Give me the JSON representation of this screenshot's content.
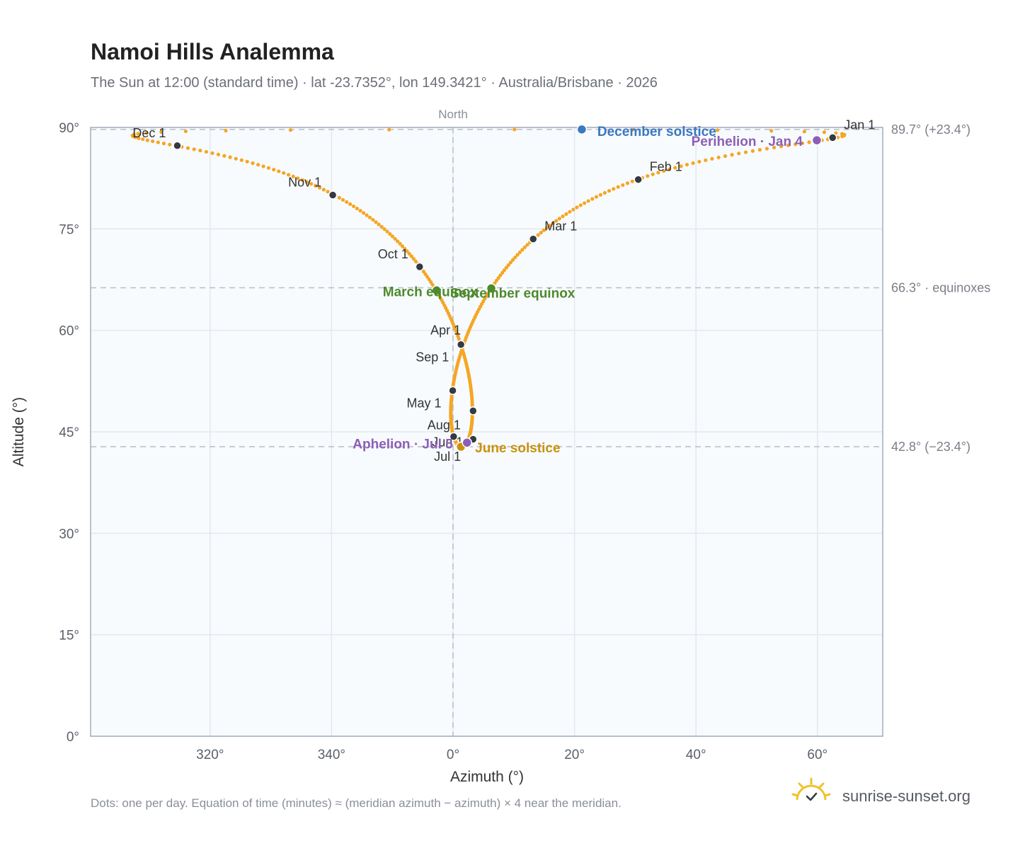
{
  "title": "Namoi Hills Analemma",
  "subtitle": "The Sun at 12:00 (standard time) · lat -23.7352°, lon 149.3421° · Australia/Brisbane · 2026",
  "footnote": "Dots: one per day. Equation of time (minutes) ≈ (meridian azimuth − azimuth) × 4 near the meridian.",
  "brand": {
    "name": "sunrise-sunset.org",
    "logo_icon": "sun-logo-icon"
  },
  "colors": {
    "curve": "#f5a623",
    "month_marker": "#333a44",
    "equinox": "#4e8a2c",
    "december_solstice": "#3a78bf",
    "june_solstice": "#c9920c",
    "apsis": "#8c5fb5",
    "grid": "#e4e7ec",
    "plot_bg": "#f8fbfe",
    "frame": "#a3aebb",
    "reference_line": "#b7bec7"
  },
  "chart_data": {
    "type": "scatter",
    "title": "Namoi Hills Analemma",
    "xlabel": "Azimuth (°)",
    "ylabel": "Altitude (°)",
    "x_unit": "azimuth degrees, plotted continuously across North (300° … 360°=0° … 70°)",
    "xlim": [
      300,
      430
    ],
    "ylim": [
      0,
      90
    ],
    "x_ticks": [
      {
        "value": 320,
        "label": "320°"
      },
      {
        "value": 340,
        "label": "340°"
      },
      {
        "value": 360,
        "label": "0°"
      },
      {
        "value": 380,
        "label": "20°"
      },
      {
        "value": 400,
        "label": "40°"
      },
      {
        "value": 420,
        "label": "60°"
      }
    ],
    "y_ticks": [
      {
        "value": 0,
        "label": "0°"
      },
      {
        "value": 15,
        "label": "15°"
      },
      {
        "value": 30,
        "label": "30°"
      },
      {
        "value": 45,
        "label": "45°"
      },
      {
        "value": 60,
        "label": "60°"
      },
      {
        "value": 75,
        "label": "75°"
      },
      {
        "value": 90,
        "label": "90°"
      }
    ],
    "grid": true,
    "north_marker": {
      "azimuth": 360,
      "label": "North"
    },
    "reference_lines": [
      {
        "altitude": 89.7,
        "label": "89.7° (+23.4°)"
      },
      {
        "altitude": 66.3,
        "label": "66.3° · equinoxes"
      },
      {
        "altitude": 42.8,
        "label": "42.8° (−23.4°)"
      }
    ],
    "month_markers": [
      {
        "label": "Jan 1",
        "azimuth": 422.5,
        "altitude": 88.5
      },
      {
        "label": "Feb 1",
        "azimuth": 390.5,
        "altitude": 82.3
      },
      {
        "label": "Mar 1",
        "azimuth": 373.2,
        "altitude": 73.5
      },
      {
        "label": "Apr 1",
        "azimuth": 361.3,
        "altitude": 57.9
      },
      {
        "label": "May 1",
        "azimuth": 359.95,
        "altitude": 51.1
      },
      {
        "label": "Jun 1",
        "azimuth": 363.3,
        "altitude": 43.9
      },
      {
        "label": "Jul 1",
        "azimuth": 361.3,
        "altitude": 42.8
      },
      {
        "label": "Aug 1",
        "azimuth": 360.1,
        "altitude": 44.3
      },
      {
        "label": "Sep 1",
        "azimuth": 363.3,
        "altitude": 48.1
      },
      {
        "label": "Oct 1",
        "azimuth": 354.5,
        "altitude": 69.4
      },
      {
        "label": "Nov 1",
        "azimuth": 340.2,
        "altitude": 80.0
      },
      {
        "label": "Dec 1",
        "azimuth": 314.6,
        "altitude": 87.3
      }
    ],
    "events": [
      {
        "label": "December solstice",
        "kind": "december_solstice",
        "azimuth": 381.2,
        "altitude": 89.7
      },
      {
        "label": "Perihelion · Jan 4",
        "kind": "apsis",
        "azimuth": 419.9,
        "altitude": 88.1
      },
      {
        "label": "March equinox",
        "kind": "equinox",
        "azimuth": 357.3,
        "altitude": 65.9
      },
      {
        "label": "September equinox",
        "kind": "equinox",
        "azimuth": 366.3,
        "altitude": 66.2
      },
      {
        "label": "June solstice",
        "kind": "june_solstice",
        "azimuth": 361.3,
        "altitude": 42.8
      },
      {
        "label": "Aphelion · Jul 5",
        "kind": "apsis",
        "azimuth": 362.3,
        "altitude": 43.4
      }
    ]
  }
}
